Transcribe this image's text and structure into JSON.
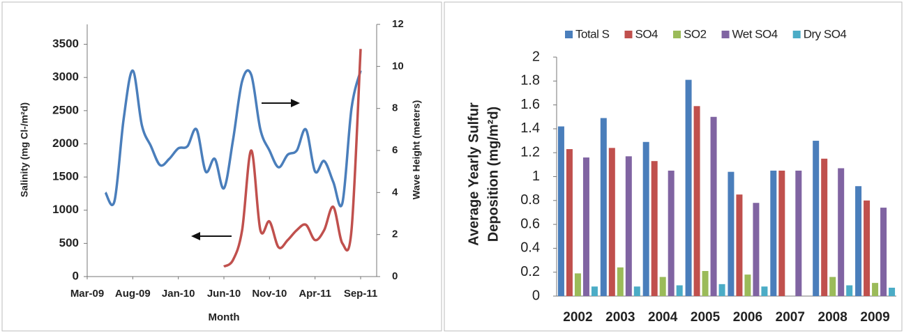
{
  "chart_data": [
    {
      "type": "line",
      "xlabel": "Month",
      "ylabel": "Salinity (mg Cl-/m²d)",
      "y2label": "Wave Height (meters)",
      "categories": [
        "Mar-09",
        null,
        null,
        null,
        null,
        "Aug-09",
        null,
        null,
        null,
        null,
        "Jan-10",
        null,
        null,
        null,
        null,
        "Jun-10",
        null,
        null,
        null,
        null,
        "Nov-10",
        null,
        null,
        null,
        null,
        "Apr-11",
        null,
        null,
        null,
        null,
        "Sep-11"
      ],
      "series": [
        {
          "color": "#4a7ebb",
          "axis": "y2",
          "values": [
            null,
            null,
            4.0,
            3.6,
            7.5,
            9.8,
            7.2,
            6.2,
            5.3,
            5.6,
            6.1,
            6.2,
            7.0,
            5.0,
            5.6,
            4.2,
            6.5,
            9.3,
            9.6,
            7.0,
            6.0,
            5.2,
            5.8,
            6.0,
            7.0,
            5.0,
            5.5,
            4.5,
            3.5,
            8.0,
            9.8
          ]
        },
        {
          "color": "#c0504d",
          "axis": "y",
          "values": [
            null,
            null,
            null,
            null,
            null,
            null,
            null,
            null,
            null,
            null,
            null,
            null,
            null,
            null,
            null,
            150,
            250,
            700,
            1900,
            700,
            830,
            440,
            550,
            700,
            780,
            550,
            700,
            1050,
            500,
            700,
            3430
          ]
        }
      ],
      "ylim": [
        0,
        3800
      ],
      "yticks": [
        0,
        500,
        1000,
        1500,
        2000,
        2500,
        3000,
        3500
      ],
      "y2lim": [
        0,
        12
      ],
      "y2ticks": [
        0,
        2,
        4,
        6,
        8,
        10,
        12
      ]
    },
    {
      "type": "bar",
      "ylabel": [
        "Average Yearly Sulfur",
        "Deposition (mg/m²d)"
      ],
      "categories": [
        "2002",
        "2003",
        "2004",
        "2005",
        "2006",
        "2007",
        "2008",
        "2009"
      ],
      "series": [
        {
          "name": "Total S",
          "color": "#4a7ebb",
          "values": [
            1.42,
            1.49,
            1.29,
            1.81,
            1.04,
            1.05,
            1.3,
            0.92
          ]
        },
        {
          "name": "SO4",
          "color": "#c0504d",
          "values": [
            1.23,
            1.24,
            1.13,
            1.59,
            0.85,
            1.05,
            1.15,
            0.8
          ]
        },
        {
          "name": "SO2",
          "color": "#9bbb59",
          "values": [
            0.19,
            0.24,
            0.16,
            0.21,
            0.18,
            null,
            0.16,
            0.11
          ]
        },
        {
          "name": "Wet SO4",
          "color": "#8064a2",
          "values": [
            1.16,
            1.17,
            1.05,
            1.5,
            0.78,
            1.05,
            1.07,
            0.74
          ]
        },
        {
          "name": "Dry SO4",
          "color": "#4bacc6",
          "values": [
            0.08,
            0.08,
            0.09,
            0.1,
            0.08,
            null,
            0.09,
            0.07
          ]
        }
      ],
      "ylim": [
        0,
        2
      ],
      "yticks": [
        0,
        0.2,
        0.4,
        0.6,
        0.8,
        1,
        1.2,
        1.4,
        1.6,
        1.8,
        2
      ],
      "legend": "top"
    }
  ]
}
